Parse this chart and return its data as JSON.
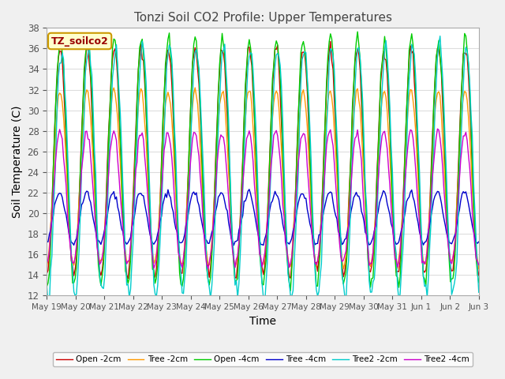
{
  "title": "Tonzi Soil CO2 Profile: Upper Temperatures",
  "xlabel": "Time",
  "ylabel": "Soil Temperature (C)",
  "ylim": [
    12,
    38
  ],
  "yticks": [
    12,
    14,
    16,
    18,
    20,
    22,
    24,
    26,
    28,
    30,
    32,
    34,
    36,
    38
  ],
  "legend_label": "TZ_soilco2",
  "legend_entries": [
    "Open -2cm",
    "Tree -2cm",
    "Open -4cm",
    "Tree -4cm",
    "Tree2 -2cm",
    "Tree2 -4cm"
  ],
  "series_colors": [
    "#cc0000",
    "#ff9900",
    "#00cc00",
    "#0000cc",
    "#00cccc",
    "#cc00cc"
  ],
  "background_color": "#f0f0f0",
  "plot_bg_color": "#ffffff",
  "n_points": 336,
  "start_day": 19,
  "n_days": 16,
  "grid_color": "#dddddd"
}
